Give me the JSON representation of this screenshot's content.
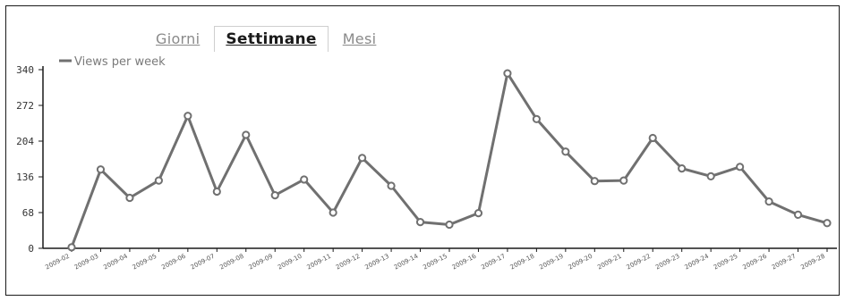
{
  "tabs": [
    {
      "label": "Giorni",
      "active": false
    },
    {
      "label": "Settimane",
      "active": true
    },
    {
      "label": "Mesi",
      "active": false
    }
  ],
  "chart_data": {
    "type": "line",
    "title": "",
    "xlabel": "",
    "ylabel": "",
    "ylim": [
      0,
      340
    ],
    "y_ticks": [
      0,
      68,
      136,
      204,
      272,
      340
    ],
    "legend": {
      "position": "top-left"
    },
    "grid": false,
    "color": "#707070",
    "categories": [
      "2009-02",
      "2009-03",
      "2009-04",
      "2009-05",
      "2009-06",
      "2009-07",
      "2009-08",
      "2009-09",
      "2009-10",
      "2009-11",
      "2009-12",
      "2009-13",
      "2009-14",
      "2009-15",
      "2009-16",
      "2009-17",
      "2009-18",
      "2009-19",
      "2009-20",
      "2009-21",
      "2009-22",
      "2009-23",
      "2009-24",
      "2009-25",
      "2009-26",
      "2009-27",
      "2009-28"
    ],
    "series": [
      {
        "name": "Views per week",
        "values": [
          2,
          150,
          96,
          129,
          252,
          108,
          216,
          101,
          131,
          68,
          172,
          119,
          50,
          45,
          67,
          333,
          246,
          184,
          128,
          129,
          210,
          152,
          137,
          155,
          89,
          64,
          48
        ]
      }
    ]
  }
}
